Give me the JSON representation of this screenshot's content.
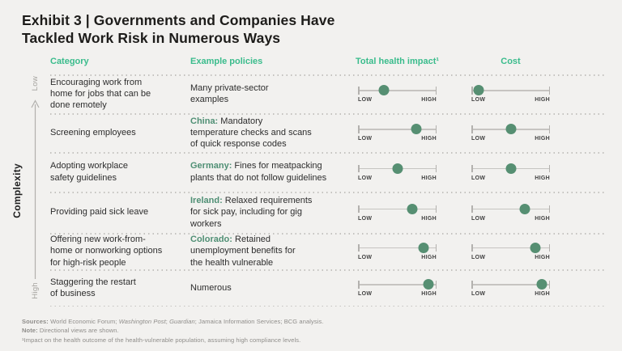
{
  "title": {
    "line1": "Exhibit 3 | Governments and Companies Have",
    "line2": "Tackled Work Risk in Numerous Ways"
  },
  "axis": {
    "label": "Complexity",
    "top_label": "Low",
    "bottom_label": "High",
    "arrow_direction": "up"
  },
  "columns": {
    "category": "Category",
    "policies": "Example policies",
    "health": "Total health impact¹",
    "cost": "Cost"
  },
  "slider_labels": {
    "low": "LOW",
    "high": "HIGH"
  },
  "rows": [
    {
      "category": "Encouraging work from\nhome for jobs that can be\ndone remotely",
      "policy_prefix": "",
      "policy_text": "Many private-sector\nexamples",
      "health_impact": 33,
      "cost": 9
    },
    {
      "category": "Screening employees",
      "policy_prefix": "China:",
      "policy_text": " Mandatory\ntemperature checks and scans\nof quick response codes",
      "health_impact": 74,
      "cost": 50
    },
    {
      "category": "Adopting workplace\nsafety guidelines",
      "policy_prefix": "Germany:",
      "policy_text": " Fines for meatpacking\nplants that do not follow guidelines",
      "health_impact": 51,
      "cost": 51
    },
    {
      "category": "Providing paid sick leave",
      "policy_prefix": "Ireland:",
      "policy_text": " Relaxed requirements\nfor sick pay, including for gig\nworkers",
      "health_impact": 69,
      "cost": 68
    },
    {
      "category": "Offering new work-from-\nhome or nonworking options\nfor high-risk people",
      "policy_prefix": "Colorado:",
      "policy_text": " Retained\nunemployment benefits for\nthe health vulnerable",
      "health_impact": 84,
      "cost": 81
    },
    {
      "category": "Staggering the restart\nof business",
      "policy_prefix": "",
      "policy_text": "Numerous",
      "health_impact": 90,
      "cost": 90
    }
  ],
  "footer": {
    "sources": {
      "label": "Sources:",
      "p1": " World Economic Forum; ",
      "p2": "Washington Post",
      "p3": "; ",
      "p4": "Guardian",
      "p5": "; Jamaica Information Services; BCG analysis."
    },
    "note_label": "Note:",
    "note_text": " Directional views are shown.",
    "footnote": "¹Impact on the health outcome of the health-vulnerable population, assuming high compliance levels."
  },
  "colors": {
    "background": "#f2f1ef",
    "accent_green_headers": "#3abc8c",
    "muted_green_country": "#4f8f74",
    "dot_green": "#568f72",
    "title_text": "#1d1c1a",
    "body_text": "#2d2d2d",
    "footer_gray": "#8e8c89"
  },
  "chart_data": {
    "type": "table",
    "title": "Exhibit 3 | Governments and Companies Have Tackled Work Risk in Numerous Ways",
    "complexity_axis": {
      "label": "Complexity",
      "top": "Low",
      "bottom": "High"
    },
    "scale": {
      "min_label": "LOW",
      "max_label": "HIGH",
      "units": "percent of LOW→HIGH track"
    },
    "categories": [
      "Encouraging work from home for jobs that can be done remotely",
      "Screening employees",
      "Adopting workplace safety guidelines",
      "Providing paid sick leave",
      "Offering new work-from-home or nonworking options for high-risk people",
      "Staggering the restart of business"
    ],
    "policies": [
      "Many private-sector examples",
      "China: Mandatory temperature checks and scans of quick response codes",
      "Germany: Fines for meatpacking plants that do not follow guidelines",
      "Ireland: Relaxed requirements for sick pay, including for gig workers",
      "Colorado: Retained unemployment benefits for the health vulnerable",
      "Numerous"
    ],
    "series": [
      {
        "name": "Total health impact",
        "values_pct": [
          33,
          74,
          51,
          69,
          84,
          90
        ]
      },
      {
        "name": "Cost",
        "values_pct": [
          9,
          50,
          51,
          68,
          81,
          90
        ]
      }
    ]
  }
}
